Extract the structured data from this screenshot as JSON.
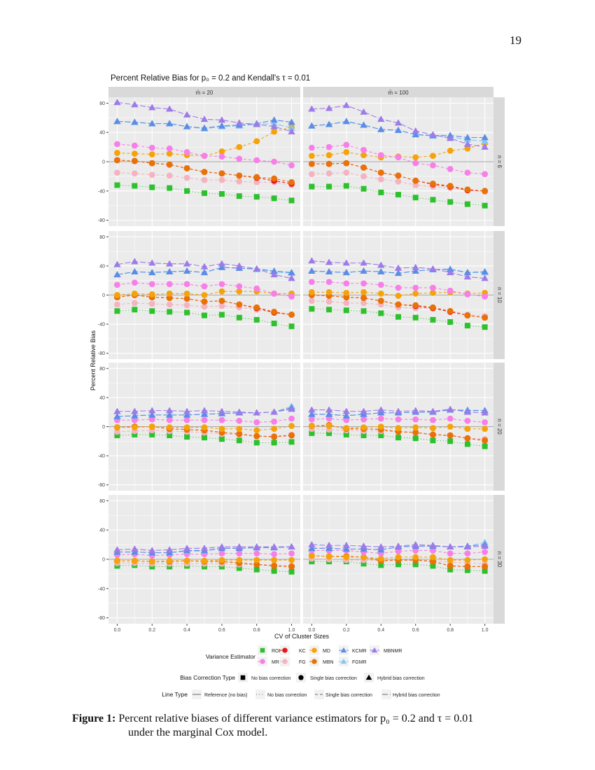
{
  "page_number": "19",
  "caption": {
    "label": "Figure 1:",
    "line1": "Percent relative biases of different variance estimators for p₀ = 0.2 and τ = 0.01",
    "line2": "under the marginal Cox model."
  },
  "chart_data": {
    "type": "line",
    "title": "Percent Relative Bias for p₀ = 0.2 and Kendall's τ = 0.01",
    "xlabel": "CV of Cluster Sizes",
    "ylabel": "Percent Relative Bias",
    "x": [
      0.0,
      0.1,
      0.2,
      0.3,
      0.4,
      0.5,
      0.6,
      0.7,
      0.8,
      0.9,
      1.0
    ],
    "xticks": [
      "0.0",
      "0.2",
      "0.4",
      "0.6",
      "0.8",
      "1.0"
    ],
    "yticks": [
      "80",
      "40",
      "0",
      "-40",
      "-80"
    ],
    "ylim": [
      -88,
      88
    ],
    "xlim": [
      -0.05,
      1.05
    ],
    "grid": true,
    "reference_line": 0,
    "column_strips": [
      "m̄ = 20",
      "m̄ = 100"
    ],
    "row_strips": [
      "n = 6",
      "n = 10",
      "n = 20",
      "n = 30"
    ],
    "legend": {
      "placement": "bottom",
      "estimator_title": "Variance Estimator",
      "estimators_row1": [
        "ROB",
        "KC",
        "MD",
        "KCMR",
        "MBNMR"
      ],
      "estimators_row2": [
        "MR",
        "FG",
        "MBN",
        "FGMR"
      ],
      "bias_title": "Bias Correction Type",
      "bias_items": [
        {
          "label": "No bias correction",
          "shape": "square"
        },
        {
          "label": "Single bias correction",
          "shape": "circle"
        },
        {
          "label": "Hybrid bias correction",
          "shape": "triangle"
        }
      ],
      "line_title": "Line Type",
      "line_items": [
        {
          "label": "Reference (no bias)",
          "linetype": "solid"
        },
        {
          "label": "No bias correction",
          "linetype": "dotted"
        },
        {
          "label": "Single bias correction",
          "linetype": "dashed"
        },
        {
          "label": "Hybrid bias correction",
          "linetype": "longdash"
        }
      ]
    },
    "series_styles": {
      "ROB": {
        "color": "#2ec12e",
        "shape": "square",
        "linetype": "dotted"
      },
      "KC": {
        "color": "#e8141c",
        "shape": "circle",
        "linetype": "dashed"
      },
      "MD": {
        "color": "#f5a30a",
        "shape": "circle",
        "linetype": "dashed"
      },
      "MR": {
        "color": "#f77fe8",
        "shape": "circle",
        "linetype": "dashed"
      },
      "FG": {
        "color": "#f5b3c0",
        "shape": "circle",
        "linetype": "dashed"
      },
      "MBN": {
        "color": "#e97206",
        "shape": "circle",
        "linetype": "dashed"
      },
      "KCMR": {
        "color": "#5b8de6",
        "shape": "triangle",
        "linetype": "longdash"
      },
      "FGMR": {
        "color": "#82c8f5",
        "shape": "triangle",
        "linetype": "longdash"
      },
      "MBNMR": {
        "color": "#9d7be8",
        "shape": "triangle",
        "linetype": "longdash"
      }
    },
    "draw_order": [
      "ROB",
      "FG",
      "KC",
      "MBN",
      "MD",
      "MR",
      "FGMR",
      "KCMR",
      "MBNMR"
    ],
    "facets": [
      {
        "m": "m̄ = 20",
        "n": "n = 6",
        "series": {
          "ROB": [
            -32,
            -33,
            -35,
            -36,
            -40,
            -43,
            -44,
            -47,
            -48,
            -50,
            -53
          ],
          "MR": [
            24,
            22,
            19,
            18,
            13,
            8,
            7,
            4,
            2,
            0,
            -5
          ],
          "FG": [
            -15,
            -16,
            -18,
            -19,
            -22,
            -25,
            -25,
            -27,
            -28,
            -28,
            -32
          ],
          "MD": [
            12,
            11,
            10,
            11,
            9,
            8,
            14,
            20,
            28,
            41,
            47
          ],
          "MBN": [
            2,
            1,
            -2,
            -4,
            -9,
            -14,
            -16,
            -19,
            -21,
            -23,
            -28
          ],
          "KC": [
            2,
            1,
            -2,
            -4,
            -9,
            -14,
            -16,
            -19,
            -22,
            -26,
            -30
          ],
          "FGMR": [
            55,
            54,
            52,
            52,
            48,
            45,
            48,
            49,
            51,
            52,
            46
          ],
          "KCMR": [
            55,
            54,
            52,
            52,
            48,
            46,
            49,
            50,
            52,
            57,
            54
          ],
          "MBNMR": [
            81,
            78,
            74,
            72,
            64,
            58,
            57,
            53,
            51,
            48,
            41
          ]
        }
      },
      {
        "m": "m̄ = 100",
        "n": "n = 6",
        "series": {
          "ROB": [
            -34,
            -34,
            -33,
            -37,
            -42,
            -45,
            -49,
            -52,
            -55,
            -58,
            -60
          ],
          "MR": [
            19,
            20,
            23,
            16,
            9,
            6,
            -2,
            -5,
            -10,
            -15,
            -17
          ],
          "FG": [
            -17,
            -16,
            -15,
            -20,
            -24,
            -27,
            -32,
            -34,
            -36,
            -39,
            -41
          ],
          "MD": [
            8,
            9,
            13,
            9,
            6,
            7,
            6,
            8,
            15,
            18,
            25
          ],
          "MBN": [
            -3,
            -3,
            -2,
            -8,
            -15,
            -19,
            -26,
            -30,
            -33,
            -38,
            -40
          ],
          "KC": [
            -3,
            -3,
            -2,
            -8,
            -15,
            -19,
            -26,
            -31,
            -34,
            -39,
            -40
          ],
          "FGMR": [
            49,
            51,
            55,
            50,
            44,
            43,
            37,
            35,
            34,
            30,
            28
          ],
          "KCMR": [
            49,
            51,
            55,
            50,
            44,
            43,
            37,
            36,
            36,
            33,
            33
          ],
          "MBNMR": [
            72,
            73,
            77,
            68,
            58,
            53,
            42,
            37,
            32,
            24,
            20
          ]
        }
      },
      {
        "m": "m̄ = 20",
        "n": "n = 10",
        "series": {
          "ROB": [
            -22,
            -20,
            -22,
            -23,
            -24,
            -28,
            -27,
            -31,
            -34,
            -39,
            -43
          ],
          "MR": [
            14,
            17,
            15,
            15,
            15,
            12,
            15,
            12,
            9,
            2,
            -2
          ],
          "FG": [
            -13,
            -11,
            -12,
            -13,
            -14,
            -16,
            -15,
            -17,
            -20,
            -24,
            -27
          ],
          "MD": [
            0,
            2,
            1,
            2,
            2,
            0,
            5,
            5,
            5,
            2,
            2
          ],
          "MBN": [
            -3,
            0,
            -3,
            -4,
            -5,
            -9,
            -8,
            -13,
            -17,
            -23,
            -27
          ],
          "KC": [
            -3,
            0,
            -3,
            -4,
            -5,
            -9,
            -8,
            -13,
            -18,
            -24,
            -27
          ],
          "FGMR": [
            28,
            32,
            31,
            32,
            33,
            31,
            38,
            37,
            35,
            32,
            30
          ],
          "KCMR": [
            28,
            32,
            31,
            32,
            33,
            31,
            38,
            37,
            36,
            33,
            31
          ],
          "MBNMR": [
            42,
            46,
            44,
            43,
            43,
            39,
            43,
            40,
            36,
            28,
            23
          ]
        }
      },
      {
        "m": "m̄ = 100",
        "n": "n = 10",
        "series": {
          "ROB": [
            -19,
            -20,
            -21,
            -22,
            -25,
            -30,
            -31,
            -34,
            -37,
            -42,
            -44
          ],
          "MR": [
            18,
            18,
            16,
            16,
            14,
            10,
            10,
            10,
            6,
            1,
            -2
          ],
          "FG": [
            -8,
            -9,
            -11,
            -11,
            -13,
            -17,
            -18,
            -18,
            -22,
            -27,
            -29
          ],
          "MD": [
            4,
            4,
            3,
            4,
            2,
            -1,
            2,
            3,
            4,
            2,
            3
          ],
          "MBN": [
            0,
            -1,
            -3,
            -4,
            -8,
            -13,
            -14,
            -17,
            -22,
            -28,
            -31
          ],
          "KC": [
            0,
            -1,
            -3,
            -4,
            -8,
            -13,
            -15,
            -18,
            -23,
            -28,
            -31
          ],
          "FGMR": [
            33,
            32,
            31,
            33,
            32,
            30,
            33,
            35,
            36,
            31,
            31
          ],
          "KCMR": [
            33,
            32,
            31,
            33,
            32,
            30,
            33,
            35,
            35,
            31,
            32
          ],
          "MBNMR": [
            47,
            45,
            44,
            44,
            41,
            37,
            38,
            36,
            31,
            25,
            23
          ]
        }
      },
      {
        "m": "m̄ = 20",
        "n": "n = 20",
        "series": {
          "ROB": [
            -12,
            -11,
            -11,
            -12,
            -14,
            -15,
            -17,
            -19,
            -22,
            -22,
            -21
          ],
          "MR": [
            9,
            9,
            10,
            9,
            9,
            9,
            9,
            8,
            6,
            7,
            11
          ],
          "FG": [
            -7,
            -6,
            -5,
            -6,
            -7,
            -8,
            -10,
            -11,
            -13,
            -13,
            -11
          ],
          "MD": [
            -1,
            -1,
            0,
            -1,
            -1,
            -1,
            -3,
            -3,
            -5,
            -3,
            1
          ],
          "MBN": [
            -1,
            0,
            0,
            -3,
            -4,
            -5,
            -8,
            -10,
            -13,
            -14,
            -12
          ],
          "KC": [
            -1,
            0,
            0,
            -3,
            -4,
            -5,
            -8,
            -10,
            -13,
            -14,
            -12
          ],
          "FGMR": [
            14,
            15,
            16,
            16,
            16,
            17,
            18,
            19,
            19,
            20,
            28
          ],
          "KCMR": [
            14,
            15,
            16,
            16,
            16,
            17,
            18,
            19,
            19,
            20,
            26
          ],
          "MBNMR": [
            21,
            21,
            22,
            22,
            21,
            22,
            21,
            20,
            19,
            20,
            24
          ]
        }
      },
      {
        "m": "m̄ = 100",
        "n": "n = 20",
        "series": {
          "ROB": [
            -9,
            -9,
            -11,
            -12,
            -12,
            -15,
            -16,
            -19,
            -20,
            -24,
            -27
          ],
          "MR": [
            10,
            11,
            9,
            10,
            11,
            10,
            10,
            9,
            11,
            8,
            6
          ],
          "FG": [
            -3,
            -4,
            -5,
            -6,
            -6,
            -7,
            -8,
            -11,
            -12,
            -16,
            -17
          ],
          "MD": [
            1,
            1,
            -2,
            -1,
            0,
            -2,
            -1,
            -2,
            0,
            -3,
            -3
          ],
          "MBN": [
            1,
            2,
            -3,
            -3,
            -4,
            -7,
            -8,
            -11,
            -12,
            -16,
            -19
          ],
          "KC": [
            1,
            2,
            -3,
            -3,
            -4,
            -7,
            -8,
            -11,
            -12,
            -16,
            -19
          ],
          "FGMR": [
            17,
            17,
            15,
            17,
            19,
            19,
            20,
            20,
            23,
            23,
            22
          ],
          "KCMR": [
            17,
            17,
            15,
            17,
            19,
            19,
            20,
            20,
            23,
            22,
            22
          ],
          "MBNMR": [
            23,
            23,
            21,
            21,
            23,
            21,
            22,
            21,
            24,
            20,
            19
          ]
        }
      },
      {
        "m": "m̄ = 20",
        "n": "n = 30",
        "series": {
          "ROB": [
            -9,
            -8,
            -10,
            -10,
            -9,
            -10,
            -10,
            -12,
            -14,
            -16,
            -17
          ],
          "MR": [
            6,
            7,
            5,
            6,
            7,
            7,
            8,
            8,
            8,
            7,
            8
          ],
          "FG": [
            -5,
            -5,
            -6,
            -6,
            -6,
            -6,
            -6,
            -7,
            -7,
            -8,
            -9
          ],
          "MD": [
            -2,
            -2,
            -3,
            -2,
            -2,
            -2,
            -1,
            -1,
            -1,
            -1,
            -1
          ],
          "MBN": [
            -2,
            -2,
            -3,
            -3,
            -2,
            -3,
            -3,
            -5,
            -7,
            -9,
            -10
          ],
          "KC": [
            -2,
            -2,
            -3,
            -3,
            -2,
            -3,
            -3,
            -5,
            -7,
            -9,
            -10
          ],
          "FGMR": [
            10,
            10,
            9,
            9,
            11,
            11,
            15,
            15,
            16,
            16,
            17
          ],
          "KCMR": [
            10,
            10,
            9,
            9,
            12,
            12,
            15,
            15,
            16,
            16,
            17
          ],
          "MBNMR": [
            13,
            14,
            12,
            13,
            15,
            15,
            17,
            17,
            17,
            17,
            17
          ]
        }
      },
      {
        "m": "m̄ = 100",
        "n": "n = 30",
        "series": {
          "ROB": [
            -3,
            -3,
            -3,
            -6,
            -8,
            -7,
            -7,
            -9,
            -14,
            -15,
            -16
          ],
          "MR": [
            12,
            12,
            12,
            10,
            8,
            11,
            12,
            12,
            8,
            8,
            10
          ],
          "FG": [
            1,
            0,
            -1,
            -1,
            -2,
            -1,
            -1,
            -2,
            -4,
            -5,
            -6
          ],
          "MD": [
            5,
            4,
            3,
            3,
            1,
            3,
            3,
            3,
            -1,
            -1,
            0
          ],
          "MBN": [
            5,
            4,
            4,
            3,
            -2,
            -1,
            -1,
            -3,
            -9,
            -10,
            -10
          ],
          "KC": [
            5,
            4,
            4,
            3,
            -2,
            -1,
            -1,
            -3,
            -9,
            -10,
            -10
          ],
          "FGMR": [
            15,
            15,
            14,
            14,
            13,
            17,
            18,
            18,
            17,
            18,
            23
          ],
          "KCMR": [
            15,
            15,
            14,
            14,
            13,
            17,
            18,
            18,
            17,
            18,
            20
          ],
          "MBNMR": [
            20,
            19,
            19,
            18,
            17,
            18,
            20,
            19,
            17,
            17,
            18
          ]
        }
      }
    ]
  }
}
